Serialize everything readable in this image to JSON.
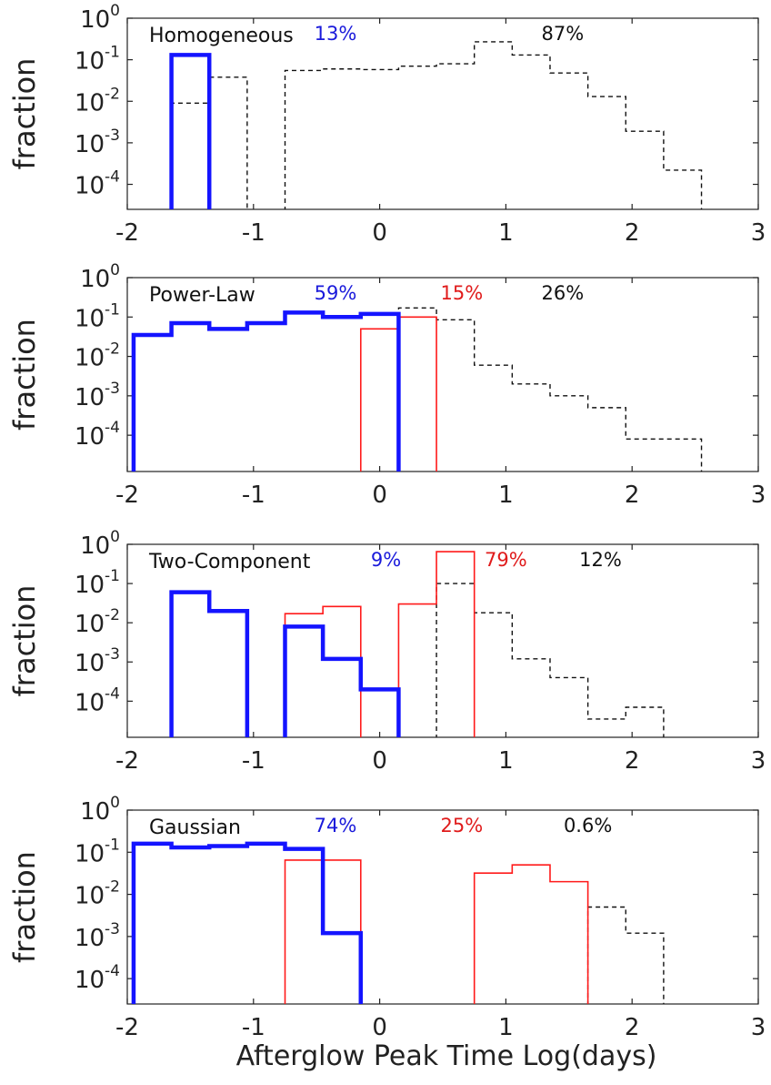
{
  "chart_data": [
    {
      "type": "step-histogram",
      "title": "",
      "annotation": "Homogeneous",
      "ylabel": "fraction",
      "yscale": "log",
      "xlim": [
        -2,
        3
      ],
      "ylim": [
        2.5e-05,
        1
      ],
      "xticks": [
        "-2",
        "-1",
        "0",
        "1",
        "2",
        "3"
      ],
      "yticks": [
        {
          "base": "10",
          "exp": "0",
          "value": 1
        },
        {
          "base": "10",
          "exp": "-1",
          "value": 0.1
        },
        {
          "base": "10",
          "exp": "-2",
          "value": 0.01
        },
        {
          "base": "10",
          "exp": "-3",
          "value": 0.001
        },
        {
          "base": "10",
          "exp": "-4",
          "value": 0.0001
        }
      ],
      "percent_labels": [
        {
          "text": "13%",
          "color": "#1a1adb",
          "x": -0.35
        },
        {
          "text": "87%",
          "color": "#111111",
          "x": 1.45
        }
      ],
      "series": [
        {
          "style": "blue-thick",
          "color": "#1414ff",
          "bins": [
            [
              -1.65,
              -1.35,
              0.13
            ]
          ]
        },
        {
          "style": "black-dashed",
          "color": "#111111",
          "bins": [
            [
              -1.65,
              -1.35,
              0.009
            ],
            [
              -1.35,
              -1.05,
              0.038
            ],
            [
              -0.75,
              -0.45,
              0.055
            ],
            [
              -0.45,
              -0.15,
              0.06
            ],
            [
              -0.15,
              0.15,
              0.058
            ],
            [
              0.15,
              0.45,
              0.07
            ],
            [
              0.45,
              0.75,
              0.08
            ],
            [
              0.75,
              1.05,
              0.27
            ],
            [
              1.05,
              1.35,
              0.13
            ],
            [
              1.35,
              1.65,
              0.048
            ],
            [
              1.65,
              1.95,
              0.013
            ],
            [
              1.95,
              2.25,
              0.0019
            ],
            [
              2.25,
              2.55,
              0.00022
            ]
          ]
        }
      ]
    },
    {
      "type": "step-histogram",
      "title": "",
      "annotation": "Power-Law",
      "ylabel": "fraction",
      "yscale": "log",
      "xlim": [
        -2,
        3
      ],
      "ylim": [
        1.2e-05,
        1
      ],
      "xticks": [
        "-2",
        "-1",
        "0",
        "1",
        "2",
        "3"
      ],
      "yticks": [
        {
          "base": "10",
          "exp": "0",
          "value": 1
        },
        {
          "base": "10",
          "exp": "-1",
          "value": 0.1
        },
        {
          "base": "10",
          "exp": "-2",
          "value": 0.01
        },
        {
          "base": "10",
          "exp": "-3",
          "value": 0.001
        },
        {
          "base": "10",
          "exp": "-4",
          "value": 0.0001
        }
      ],
      "percent_labels": [
        {
          "text": "59%",
          "color": "#1a1adb",
          "x": -0.35
        },
        {
          "text": "15%",
          "color": "#e01b1b",
          "x": 0.65
        },
        {
          "text": "26%",
          "color": "#111111",
          "x": 1.45
        }
      ],
      "series": [
        {
          "style": "blue-thick",
          "color": "#1414ff",
          "bins": [
            [
              -1.95,
              -1.65,
              0.035
            ],
            [
              -1.65,
              -1.35,
              0.07
            ],
            [
              -1.35,
              -1.05,
              0.05
            ],
            [
              -1.05,
              -0.75,
              0.07
            ],
            [
              -0.75,
              -0.45,
              0.13
            ],
            [
              -0.45,
              -0.15,
              0.1
            ],
            [
              -0.15,
              0.15,
              0.12
            ]
          ]
        },
        {
          "style": "red-thin",
          "color": "#ff1a1a",
          "bins": [
            [
              -0.15,
              0.15,
              0.05
            ],
            [
              0.15,
              0.45,
              0.1
            ]
          ]
        },
        {
          "style": "black-dashed",
          "color": "#111111",
          "bins": [
            [
              0.15,
              0.45,
              0.17
            ],
            [
              0.45,
              0.75,
              0.085
            ],
            [
              0.75,
              1.05,
              0.006
            ],
            [
              1.05,
              1.35,
              0.002
            ],
            [
              1.35,
              1.65,
              0.001
            ],
            [
              1.65,
              1.95,
              0.0005
            ],
            [
              1.95,
              2.25,
              8e-05
            ],
            [
              2.25,
              2.55,
              8e-05
            ]
          ]
        }
      ]
    },
    {
      "type": "step-histogram",
      "title": "",
      "annotation": "Two-Component",
      "ylabel": "fraction",
      "yscale": "log",
      "xlim": [
        -2,
        3
      ],
      "ylim": [
        1.2e-05,
        1
      ],
      "xticks": [
        "-2",
        "-1",
        "0",
        "1",
        "2",
        "3"
      ],
      "yticks": [
        {
          "base": "10",
          "exp": "0",
          "value": 1
        },
        {
          "base": "10",
          "exp": "-1",
          "value": 0.1
        },
        {
          "base": "10",
          "exp": "-2",
          "value": 0.01
        },
        {
          "base": "10",
          "exp": "-3",
          "value": 0.001
        },
        {
          "base": "10",
          "exp": "-4",
          "value": 0.0001
        }
      ],
      "percent_labels": [
        {
          "text": "9%",
          "color": "#1a1adb",
          "x": 0.05
        },
        {
          "text": "79%",
          "color": "#e01b1b",
          "x": 1.0
        },
        {
          "text": "12%",
          "color": "#111111",
          "x": 1.75
        }
      ],
      "series": [
        {
          "style": "blue-thick",
          "color": "#1414ff",
          "bins": [
            [
              -1.65,
              -1.35,
              0.06
            ],
            [
              -1.35,
              -1.05,
              0.02
            ],
            [
              -0.75,
              -0.45,
              0.008
            ],
            [
              -0.45,
              -0.15,
              0.0012
            ],
            [
              -0.15,
              0.15,
              0.0002
            ]
          ]
        },
        {
          "style": "red-thin",
          "color": "#ff1a1a",
          "bins": [
            [
              -0.75,
              -0.45,
              0.017
            ],
            [
              -0.45,
              -0.15,
              0.026
            ],
            [
              0.15,
              0.45,
              0.03
            ],
            [
              0.45,
              0.75,
              0.65
            ]
          ]
        },
        {
          "style": "black-dashed",
          "color": "#111111",
          "bins": [
            [
              0.45,
              0.75,
              0.1
            ],
            [
              0.75,
              1.05,
              0.018
            ],
            [
              1.05,
              1.35,
              0.0012
            ],
            [
              1.35,
              1.65,
              0.0004
            ],
            [
              1.65,
              1.95,
              3.5e-05
            ],
            [
              1.95,
              2.25,
              7e-05
            ]
          ]
        }
      ]
    },
    {
      "type": "step-histogram",
      "title": "",
      "annotation": "Gaussian",
      "ylabel": "fraction",
      "xlabel": "Afterglow Peak Time  Log(days)",
      "yscale": "log",
      "xlim": [
        -2,
        3
      ],
      "ylim": [
        2.5e-05,
        1
      ],
      "xticks": [
        "-2",
        "-1",
        "0",
        "1",
        "2",
        "3"
      ],
      "yticks": [
        {
          "base": "10",
          "exp": "0",
          "value": 1
        },
        {
          "base": "10",
          "exp": "-1",
          "value": 0.1
        },
        {
          "base": "10",
          "exp": "-2",
          "value": 0.01
        },
        {
          "base": "10",
          "exp": "-3",
          "value": 0.001
        },
        {
          "base": "10",
          "exp": "-4",
          "value": 0.0001
        }
      ],
      "percent_labels": [
        {
          "text": "74%",
          "color": "#1a1adb",
          "x": -0.35
        },
        {
          "text": "25%",
          "color": "#e01b1b",
          "x": 0.65
        },
        {
          "text": "0.6%",
          "color": "#111111",
          "x": 1.65
        }
      ],
      "series": [
        {
          "style": "blue-thick",
          "color": "#1414ff",
          "bins": [
            [
              -1.95,
              -1.65,
              0.16
            ],
            [
              -1.65,
              -1.35,
              0.13
            ],
            [
              -1.35,
              -1.05,
              0.14
            ],
            [
              -1.05,
              -0.75,
              0.16
            ],
            [
              -0.75,
              -0.45,
              0.12
            ],
            [
              -0.45,
              -0.15,
              0.0012
            ]
          ]
        },
        {
          "style": "red-thin",
          "color": "#ff1a1a",
          "bins": [
            [
              -0.75,
              -0.45,
              0.065
            ],
            [
              -0.45,
              -0.15,
              0.065
            ],
            [
              0.75,
              1.05,
              0.032
            ],
            [
              1.05,
              1.35,
              0.05
            ],
            [
              1.35,
              1.65,
              0.02
            ]
          ]
        },
        {
          "style": "black-dashed",
          "color": "#111111",
          "bins": [
            [
              1.65,
              1.95,
              0.005
            ],
            [
              1.95,
              2.25,
              0.0012
            ]
          ]
        }
      ]
    }
  ]
}
